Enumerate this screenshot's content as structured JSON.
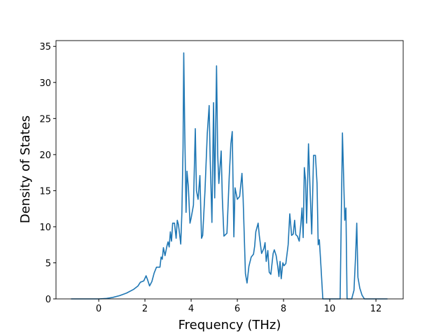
{
  "chart_data": {
    "type": "line",
    "x_label": "Frequency (THz)",
    "y_label": "Density of States",
    "xlim": [
      -1.85,
      13.18
    ],
    "ylim": [
      0,
      35.8
    ],
    "xticks": [
      0,
      2,
      4,
      6,
      8,
      10,
      12
    ],
    "yticks": [
      0,
      5,
      10,
      15,
      20,
      25,
      30,
      35
    ],
    "x": [
      -1.2,
      -0.5,
      0,
      0.3,
      0.6,
      0.9,
      1.2,
      1.5,
      1.7,
      1.8,
      1.95,
      2.05,
      2.12,
      2.2,
      2.3,
      2.4,
      2.5,
      2.6,
      2.65,
      2.7,
      2.75,
      2.8,
      2.87,
      2.95,
      3.0,
      3.05,
      3.1,
      3.15,
      3.2,
      3.28,
      3.35,
      3.4,
      3.45,
      3.5,
      3.55,
      3.6,
      3.65,
      3.68,
      3.72,
      3.78,
      3.82,
      3.88,
      3.95,
      4.0,
      4.1,
      4.18,
      4.23,
      4.3,
      4.38,
      4.45,
      4.5,
      4.6,
      4.7,
      4.78,
      4.82,
      4.9,
      4.97,
      5.02,
      5.1,
      5.15,
      5.2,
      5.3,
      5.35,
      5.42,
      5.55,
      5.65,
      5.72,
      5.78,
      5.85,
      5.9,
      6.0,
      6.1,
      6.2,
      6.25,
      6.35,
      6.42,
      6.5,
      6.6,
      6.7,
      6.75,
      6.8,
      6.9,
      6.95,
      7.05,
      7.15,
      7.2,
      7.25,
      7.32,
      7.38,
      7.45,
      7.55,
      7.6,
      7.68,
      7.75,
      7.8,
      7.85,
      7.9,
      7.97,
      8.02,
      8.1,
      8.2,
      8.27,
      8.35,
      8.42,
      8.48,
      8.53,
      8.6,
      8.68,
      8.75,
      8.8,
      8.85,
      8.9,
      8.95,
      9.0,
      9.08,
      9.15,
      9.22,
      9.3,
      9.38,
      9.45,
      9.5,
      9.55,
      9.62,
      9.7,
      10.0,
      10.45,
      10.55,
      10.6,
      10.65,
      10.7,
      10.75,
      10.95,
      11.05,
      11.12,
      11.17,
      11.22,
      11.3,
      11.4,
      11.5,
      12.0,
      12.5
    ],
    "series": [
      {
        "color": "#1f77b4",
        "values": [
          0,
          0,
          0,
          0.05,
          0.2,
          0.45,
          0.8,
          1.3,
          1.8,
          2.3,
          2.5,
          3.2,
          2.6,
          1.8,
          2.4,
          3.6,
          4.4,
          4.4,
          4.4,
          5.8,
          5.5,
          7.1,
          6.0,
          7.3,
          7.9,
          7.2,
          9.3,
          8.0,
          10.5,
          10.5,
          8.4,
          10.9,
          10.3,
          9.0,
          7.6,
          12.0,
          21,
          34.1,
          24,
          12,
          17.7,
          15.5,
          10.5,
          11.2,
          13,
          23.6,
          15,
          13.8,
          17.1,
          8.4,
          8.8,
          15,
          23,
          26.8,
          20,
          10.6,
          27.2,
          14,
          32.3,
          20,
          16,
          20.5,
          14,
          8.7,
          9.1,
          17,
          21.5,
          23.2,
          8.6,
          15.4,
          13.8,
          14.2,
          17.4,
          14,
          3.5,
          2.2,
          4.5,
          5.8,
          6.2,
          7.3,
          9.3,
          10.5,
          8.8,
          6.3,
          7.0,
          7.8,
          5.2,
          6.7,
          3.7,
          3.4,
          6.3,
          6.8,
          6.0,
          4.5,
          3.1,
          5.2,
          2.8,
          5.0,
          4.6,
          4.9,
          7.5,
          11.8,
          8.8,
          9.0,
          10.9,
          8.9,
          8.7,
          8.0,
          10.4,
          12.6,
          8.5,
          18.2,
          16.5,
          10.5,
          21.5,
          15,
          9.0,
          19.9,
          19.9,
          16,
          7.5,
          8.2,
          4.5,
          0,
          0,
          0,
          23.0,
          17,
          10.9,
          12.6,
          0,
          0,
          1.2,
          6.0,
          10.5,
          3,
          1.5,
          0.5,
          0,
          0,
          0
        ]
      }
    ]
  }
}
